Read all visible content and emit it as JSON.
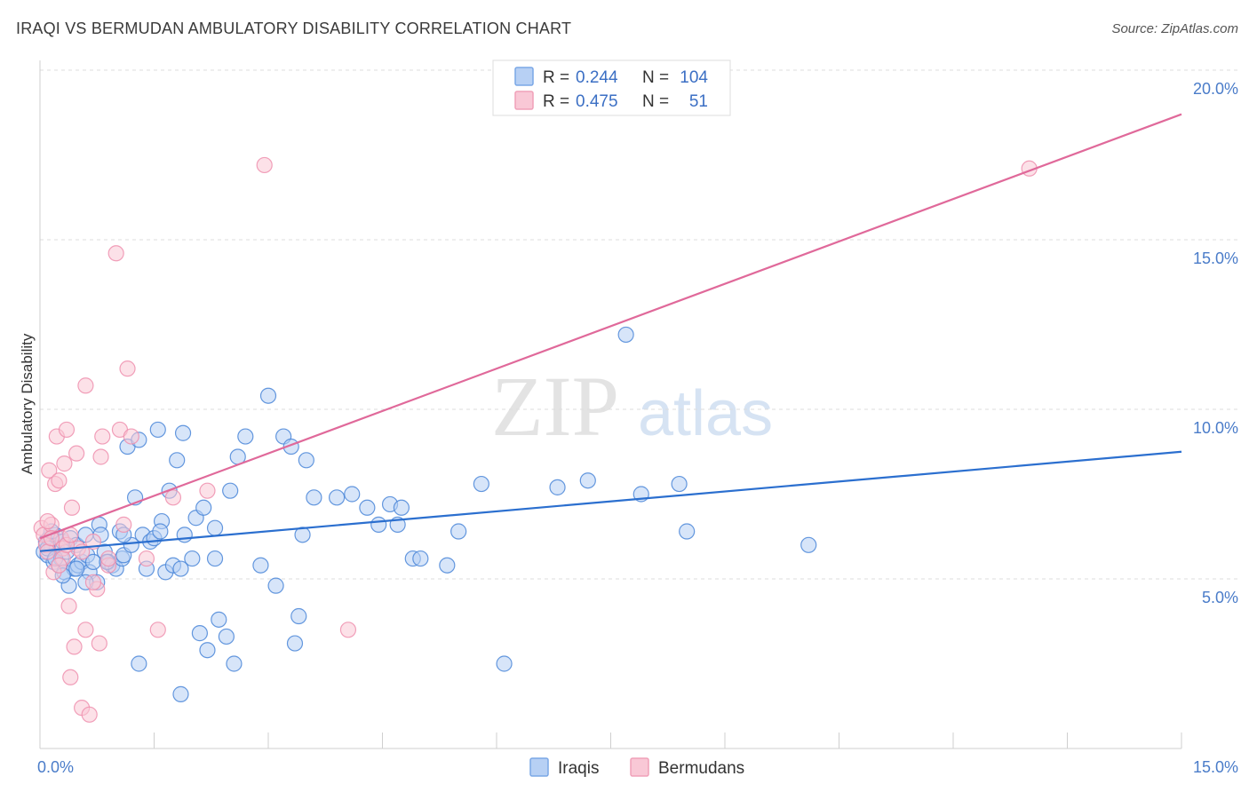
{
  "header": {
    "title": "IRAQI VS BERMUDAN AMBULATORY DISABILITY CORRELATION CHART",
    "source": "Source: ZipAtlas.com"
  },
  "watermark": {
    "zip": "ZIP",
    "atlas": "atlas"
  },
  "legend_top": [
    {
      "r_label": "R = ",
      "r_value": "0.244",
      "n_label": "N = ",
      "n_value": "104",
      "color": "#7aa7e6",
      "fill": "#b7d0f4"
    },
    {
      "r_label": "R = ",
      "r_value": "0.475",
      "n_label": "N = ",
      "n_value": "51",
      "color": "#f0a0b8",
      "fill": "#f9c8d6"
    }
  ],
  "legend_bottom": [
    {
      "label": "Iraqis",
      "color": "#7aa7e6",
      "fill": "#b7d0f4"
    },
    {
      "label": "Bermudans",
      "color": "#f0a0b8",
      "fill": "#f9c8d6"
    }
  ],
  "chart_data": {
    "type": "scatter",
    "title": "IRAQI VS BERMUDAN AMBULATORY DISABILITY CORRELATION CHART",
    "xlabel": "",
    "ylabel": "Ambulatory Disability",
    "xlim": [
      0,
      15
    ],
    "ylim": [
      0,
      20
    ],
    "x_tick_labels": [
      "0.0%",
      "15.0%"
    ],
    "y_ticks": [
      5,
      10,
      15,
      20
    ],
    "y_tick_labels": [
      "5.0%",
      "10.0%",
      "15.0%",
      "20.0%"
    ],
    "grid": "horizontal dashed",
    "legend_placement": "top-center",
    "series": [
      {
        "name": "Iraqis",
        "color": "#4a86d8",
        "fill": "#b7d0f4",
        "trend": {
          "x": [
            0,
            15
          ],
          "y": [
            5.82,
            8.75
          ],
          "color": "#2b6fcf"
        },
        "points": [
          [
            0.05,
            5.8
          ],
          [
            0.08,
            6.1
          ],
          [
            0.1,
            5.7
          ],
          [
            0.12,
            6.2
          ],
          [
            0.15,
            6.0
          ],
          [
            0.18,
            5.5
          ],
          [
            0.2,
            6.3
          ],
          [
            0.22,
            5.9
          ],
          [
            0.25,
            5.4
          ],
          [
            0.28,
            5.6
          ],
          [
            0.3,
            6.1
          ],
          [
            0.32,
            5.2
          ],
          [
            0.35,
            5.8
          ],
          [
            0.38,
            4.8
          ],
          [
            0.4,
            6.2
          ],
          [
            0.45,
            5.3
          ],
          [
            0.48,
            6.0
          ],
          [
            0.5,
            5.4
          ],
          [
            0.55,
            5.5
          ],
          [
            0.6,
            6.3
          ],
          [
            0.62,
            5.7
          ],
          [
            0.65,
            5.2
          ],
          [
            0.7,
            5.5
          ],
          [
            0.75,
            4.9
          ],
          [
            0.78,
            6.6
          ],
          [
            0.8,
            6.3
          ],
          [
            0.85,
            5.8
          ],
          [
            0.9,
            5.5
          ],
          [
            0.95,
            5.4
          ],
          [
            1.0,
            5.3
          ],
          [
            1.05,
            6.4
          ],
          [
            1.08,
            5.6
          ],
          [
            1.1,
            5.7
          ],
          [
            1.15,
            8.9
          ],
          [
            1.2,
            6.0
          ],
          [
            1.25,
            7.4
          ],
          [
            1.3,
            9.1
          ],
          [
            1.35,
            6.3
          ],
          [
            1.4,
            5.3
          ],
          [
            1.45,
            6.1
          ],
          [
            1.5,
            6.2
          ],
          [
            1.55,
            9.4
          ],
          [
            1.6,
            6.7
          ],
          [
            1.65,
            5.2
          ],
          [
            1.7,
            7.6
          ],
          [
            1.75,
            5.4
          ],
          [
            1.8,
            8.5
          ],
          [
            1.85,
            5.3
          ],
          [
            1.88,
            9.3
          ],
          [
            1.9,
            6.3
          ],
          [
            2.0,
            5.6
          ],
          [
            2.05,
            6.8
          ],
          [
            2.1,
            3.4
          ],
          [
            2.2,
            2.9
          ],
          [
            2.3,
            6.5
          ],
          [
            2.35,
            3.8
          ],
          [
            2.45,
            3.3
          ],
          [
            2.5,
            7.6
          ],
          [
            2.55,
            2.5
          ],
          [
            2.6,
            8.6
          ],
          [
            2.7,
            9.2
          ],
          [
            2.9,
            5.4
          ],
          [
            3.0,
            10.4
          ],
          [
            3.1,
            4.8
          ],
          [
            3.2,
            9.2
          ],
          [
            3.3,
            8.9
          ],
          [
            3.35,
            3.1
          ],
          [
            3.4,
            3.9
          ],
          [
            3.45,
            6.3
          ],
          [
            3.5,
            8.5
          ],
          [
            3.6,
            7.4
          ],
          [
            3.9,
            7.4
          ],
          [
            4.1,
            7.5
          ],
          [
            4.3,
            7.1
          ],
          [
            4.45,
            6.6
          ],
          [
            4.6,
            7.2
          ],
          [
            4.7,
            6.6
          ],
          [
            4.75,
            7.1
          ],
          [
            4.9,
            5.6
          ],
          [
            5.0,
            5.6
          ],
          [
            5.35,
            5.4
          ],
          [
            5.5,
            6.4
          ],
          [
            5.8,
            7.8
          ],
          [
            6.1,
            2.5
          ],
          [
            6.8,
            7.7
          ],
          [
            7.2,
            7.9
          ],
          [
            7.7,
            12.2
          ],
          [
            7.9,
            7.5
          ],
          [
            8.4,
            7.8
          ],
          [
            8.5,
            6.4
          ],
          [
            10.1,
            6.0
          ],
          [
            1.3,
            2.5
          ],
          [
            1.85,
            1.6
          ],
          [
            2.3,
            5.6
          ],
          [
            0.6,
            4.9
          ],
          [
            1.1,
            6.3
          ],
          [
            0.88,
            5.5
          ],
          [
            1.58,
            6.4
          ],
          [
            2.15,
            7.1
          ],
          [
            0.3,
            5.1
          ],
          [
            0.48,
            5.3
          ],
          [
            0.15,
            6.4
          ],
          [
            0.1,
            5.9
          ],
          [
            0.2,
            5.6
          ]
        ]
      },
      {
        "name": "Bermudans",
        "color": "#ee8fae",
        "fill": "#f9c8d6",
        "trend": {
          "x": [
            0,
            15
          ],
          "y": [
            6.2,
            18.7
          ],
          "color": "#e0699a"
        },
        "points": [
          [
            0.02,
            6.5
          ],
          [
            0.05,
            6.3
          ],
          [
            0.08,
            6.0
          ],
          [
            0.1,
            5.8
          ],
          [
            0.12,
            8.2
          ],
          [
            0.15,
            6.6
          ],
          [
            0.18,
            5.2
          ],
          [
            0.2,
            7.8
          ],
          [
            0.22,
            9.2
          ],
          [
            0.25,
            7.9
          ],
          [
            0.28,
            6.2
          ],
          [
            0.3,
            5.9
          ],
          [
            0.32,
            8.4
          ],
          [
            0.35,
            9.4
          ],
          [
            0.38,
            4.2
          ],
          [
            0.4,
            2.1
          ],
          [
            0.42,
            7.1
          ],
          [
            0.45,
            3.0
          ],
          [
            0.48,
            8.7
          ],
          [
            0.5,
            5.9
          ],
          [
            0.55,
            1.2
          ],
          [
            0.6,
            10.7
          ],
          [
            0.65,
            1.0
          ],
          [
            0.7,
            6.1
          ],
          [
            0.75,
            4.7
          ],
          [
            0.78,
            3.1
          ],
          [
            0.82,
            9.2
          ],
          [
            0.9,
            5.4
          ],
          [
            1.0,
            14.6
          ],
          [
            1.05,
            9.4
          ],
          [
            1.1,
            6.6
          ],
          [
            1.15,
            11.2
          ],
          [
            1.2,
            9.2
          ],
          [
            1.4,
            5.6
          ],
          [
            1.55,
            3.5
          ],
          [
            1.75,
            7.4
          ],
          [
            2.2,
            7.6
          ],
          [
            2.95,
            17.2
          ],
          [
            4.05,
            3.5
          ],
          [
            13.0,
            17.1
          ],
          [
            0.6,
            3.5
          ],
          [
            0.8,
            8.6
          ],
          [
            0.9,
            5.6
          ],
          [
            0.3,
            5.6
          ],
          [
            0.15,
            6.2
          ],
          [
            0.35,
            6.0
          ],
          [
            0.55,
            5.8
          ],
          [
            0.25,
            5.4
          ],
          [
            0.4,
            6.3
          ],
          [
            0.7,
            4.9
          ],
          [
            0.1,
            6.7
          ]
        ]
      }
    ]
  }
}
